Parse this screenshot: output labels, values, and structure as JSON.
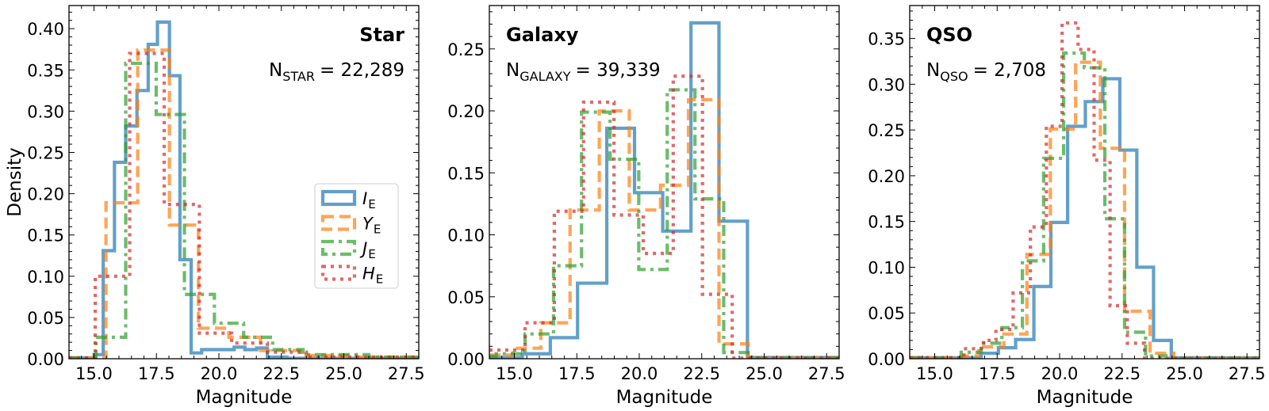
{
  "legend": {
    "entries": [
      {
        "symbol": "I",
        "sub": "E",
        "color": "#1f77b4",
        "style": "solid"
      },
      {
        "symbol": "Y",
        "sub": "E",
        "color": "#ff7f0e",
        "style": "dashed"
      },
      {
        "symbol": "J",
        "sub": "E",
        "color": "#2ca02c",
        "style": "dashdot"
      },
      {
        "symbol": "H",
        "sub": "E",
        "color": "#d62728",
        "style": "dotted"
      }
    ],
    "placement": "center-right of first panel"
  },
  "chart_data": [
    {
      "type": "histogram-step",
      "title": "Star",
      "n_label": {
        "main": "N",
        "sub": "STAR",
        "value": "= 22,289"
      },
      "xlabel": "Magnitude",
      "ylabel": "Density",
      "xlim": [
        14,
        28
      ],
      "ylim": [
        0,
        0.428
      ],
      "xticks": [
        "15.0",
        "17.5",
        "20.0",
        "22.5",
        "25.0",
        "27.5"
      ],
      "yticks": [
        "0.00",
        "0.05",
        "0.10",
        "0.15",
        "0.20",
        "0.25",
        "0.30",
        "0.35",
        "0.40"
      ],
      "grid": false,
      "series": [
        {
          "name": "I_E",
          "edges": [
            14,
            15.0,
            15.37,
            15.82,
            16.27,
            16.72,
            17.17,
            17.54,
            18.02,
            18.44,
            18.89,
            19.31,
            20.61,
            21.04,
            21.51,
            21.94,
            22.73,
            28
          ],
          "values": [
            0.001,
            0.005,
            0.131,
            0.238,
            0.282,
            0.325,
            0.381,
            0.408,
            0.343,
            0.12,
            0.007,
            0.011,
            0.014,
            0.011,
            0.013,
            0.002,
            0.0005
          ]
        },
        {
          "name": "Y_E",
          "edges": [
            14,
            15.48,
            16.75,
            18.02,
            19.18,
            20.4,
            21.67,
            23.26,
            25.5,
            28
          ],
          "values": [
            0.001,
            0.189,
            0.374,
            0.162,
            0.037,
            0.026,
            0.01,
            0.004,
            0.002
          ]
        },
        {
          "name": "J_E",
          "edges": [
            14,
            15.08,
            16.27,
            17.49,
            18.62,
            19.82,
            20.99,
            22.15,
            23.37,
            26,
            28
          ],
          "values": [
            0.001,
            0.026,
            0.358,
            0.296,
            0.078,
            0.043,
            0.026,
            0.011,
            0.005,
            0.002
          ]
        },
        {
          "name": "H_E",
          "edges": [
            14,
            15.05,
            16.43,
            17.81,
            19.22,
            20.51,
            21.94,
            23.5,
            28
          ],
          "values": [
            0.001,
            0.1,
            0.37,
            0.187,
            0.031,
            0.019,
            0.008,
            0.002
          ]
        }
      ]
    },
    {
      "type": "histogram-step",
      "title": "Galaxy",
      "n_label": {
        "main": "N",
        "sub": "GALAXY",
        "value": "= 39,339"
      },
      "xlabel": "Magnitude",
      "ylabel": "",
      "xlim": [
        14,
        28
      ],
      "ylim": [
        0,
        0.285
      ],
      "xticks": [
        "15.0",
        "17.5",
        "20.0",
        "22.5",
        "25.0",
        "27.5"
      ],
      "yticks": [
        "0.00",
        "0.05",
        "0.10",
        "0.15",
        "0.20",
        "0.25"
      ],
      "grid": false,
      "series": [
        {
          "name": "I_E",
          "edges": [
            14,
            15.32,
            16.44,
            17.53,
            18.7,
            19.81,
            20.94,
            22.07,
            23.19,
            24.33,
            28
          ],
          "values": [
            0.001,
            0.004,
            0.017,
            0.061,
            0.186,
            0.134,
            0.103,
            0.271,
            0.111,
            0.001
          ]
        },
        {
          "name": "Y_E",
          "edges": [
            14,
            14.95,
            16.06,
            17.23,
            18.4,
            19.6,
            20.85,
            21.97,
            23.19,
            24.36,
            28
          ],
          "values": [
            0.003,
            0.0085,
            0.029,
            0.12,
            0.2,
            0.12,
            0.14,
            0.209,
            0.012,
            0.0005
          ]
        },
        {
          "name": "J_E",
          "edges": [
            14,
            14.28,
            15.43,
            16.57,
            17.69,
            18.83,
            19.98,
            21.12,
            22.23,
            23.38,
            24.49,
            28
          ],
          "values": [
            0.002,
            0.004,
            0.02,
            0.075,
            0.199,
            0.161,
            0.072,
            0.217,
            0.129,
            0.005,
            0.0005
          ]
        },
        {
          "name": "H_E",
          "edges": [
            14,
            15.43,
            16.6,
            17.77,
            18.99,
            20.16,
            21.36,
            22.53,
            23.72,
            28
          ],
          "values": [
            0.007,
            0.029,
            0.119,
            0.207,
            0.116,
            0.085,
            0.228,
            0.052,
            0.0005
          ]
        }
      ]
    },
    {
      "type": "histogram-step",
      "title": "QSO",
      "n_label": {
        "main": "N",
        "sub": "QSO",
        "value": "= 2,708"
      },
      "xlabel": "Magnitude",
      "ylabel": "",
      "xlim": [
        14,
        28
      ],
      "ylim": [
        0,
        0.386
      ],
      "xticks": [
        "15.0",
        "17.5",
        "20.0",
        "22.5",
        "25.0",
        "27.5"
      ],
      "yticks": [
        "0.00",
        "0.05",
        "0.10",
        "0.15",
        "0.20",
        "0.25",
        "0.30",
        "0.35"
      ],
      "grid": false,
      "series": [
        {
          "name": "I_E",
          "edges": [
            14,
            16.86,
            17.55,
            18.24,
            18.97,
            19.65,
            20.32,
            21.03,
            21.73,
            22.41,
            23.09,
            23.76,
            24.47,
            28
          ],
          "values": [
            0.001,
            0.006,
            0.012,
            0.021,
            0.079,
            0.149,
            0.254,
            0.281,
            0.306,
            0.228,
            0.1,
            0.02,
            0.001
          ]
        },
        {
          "name": "Y_E",
          "edges": [
            14,
            16.12,
            16.76,
            17.77,
            18.69,
            19.63,
            20.64,
            21.63,
            22.6,
            23.62,
            24.57,
            28
          ],
          "values": [
            0.001,
            0.003,
            0.013,
            0.027,
            0.114,
            0.251,
            0.324,
            0.23,
            0.052,
            0.006,
            0.0005
          ]
        },
        {
          "name": "J_E",
          "edges": [
            14,
            16.06,
            16.86,
            17.69,
            18.51,
            19.36,
            20.16,
            20.99,
            21.81,
            22.6,
            23.44,
            24.26,
            28
          ],
          "values": [
            0.001,
            0.007,
            0.017,
            0.034,
            0.107,
            0.219,
            0.334,
            0.318,
            0.153,
            0.029,
            0.003,
            0.0005
          ]
        },
        {
          "name": "H_E",
          "edges": [
            14,
            16.17,
            16.95,
            17.45,
            18.14,
            18.83,
            19.47,
            20.1,
            20.74,
            21.38,
            22.02,
            22.71,
            23.4,
            28
          ],
          "values": [
            0.001,
            0.011,
            0.02,
            0.032,
            0.072,
            0.144,
            0.254,
            0.367,
            0.338,
            0.217,
            0.058,
            0.017,
            0.0005
          ]
        }
      ]
    }
  ]
}
